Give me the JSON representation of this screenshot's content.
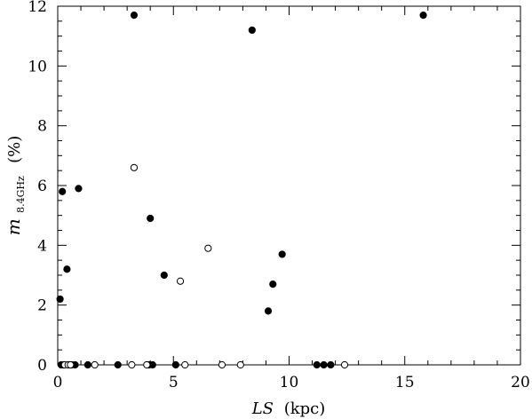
{
  "chart_data": {
    "type": "scatter",
    "xlabel": {
      "main": "LS",
      "unit": "(kpc)"
    },
    "ylabel": {
      "main": "m",
      "subscript": "8.4GHz",
      "unit": "(%)"
    },
    "xlim": [
      0,
      20
    ],
    "ylim": [
      0,
      12
    ],
    "x_ticks": [
      0,
      5,
      10,
      15,
      20
    ],
    "y_ticks": [
      0,
      2,
      4,
      6,
      8,
      10,
      12
    ],
    "x_tick_labels": [
      "0",
      "5",
      "10",
      "15",
      "20"
    ],
    "y_tick_labels": [
      "0",
      "2",
      "4",
      "6",
      "8",
      "10",
      "12"
    ],
    "grid": false,
    "series": [
      {
        "marker": "filled-circle",
        "points": [
          {
            "x": 3.3,
            "y": 11.7
          },
          {
            "x": 8.4,
            "y": 11.2
          },
          {
            "x": 15.8,
            "y": 11.7
          },
          {
            "x": 0.9,
            "y": 5.9
          },
          {
            "x": 0.2,
            "y": 5.8
          },
          {
            "x": 4.0,
            "y": 4.9
          },
          {
            "x": 9.7,
            "y": 3.7
          },
          {
            "x": 0.4,
            "y": 3.2
          },
          {
            "x": 4.6,
            "y": 3.0
          },
          {
            "x": 9.3,
            "y": 2.7
          },
          {
            "x": 0.1,
            "y": 2.2
          },
          {
            "x": 9.1,
            "y": 1.8
          },
          {
            "x": 0.15,
            "y": 0
          },
          {
            "x": 0.25,
            "y": 0
          },
          {
            "x": 0.6,
            "y": 0
          },
          {
            "x": 0.75,
            "y": 0
          },
          {
            "x": 1.3,
            "y": 0
          },
          {
            "x": 2.6,
            "y": 0
          },
          {
            "x": 3.95,
            "y": 0
          },
          {
            "x": 4.1,
            "y": 0
          },
          {
            "x": 5.1,
            "y": 0
          },
          {
            "x": 11.2,
            "y": 0
          },
          {
            "x": 11.5,
            "y": 0
          },
          {
            "x": 11.8,
            "y": 0
          }
        ]
      },
      {
        "marker": "open-circle",
        "points": [
          {
            "x": 3.3,
            "y": 6.6
          },
          {
            "x": 6.5,
            "y": 3.9
          },
          {
            "x": 5.3,
            "y": 2.8
          },
          {
            "x": 0.3,
            "y": 0
          },
          {
            "x": 0.45,
            "y": 0
          },
          {
            "x": 0.55,
            "y": 0
          },
          {
            "x": 1.6,
            "y": 0
          },
          {
            "x": 3.2,
            "y": 0
          },
          {
            "x": 3.85,
            "y": 0
          },
          {
            "x": 5.5,
            "y": 0
          },
          {
            "x": 7.1,
            "y": 0
          },
          {
            "x": 7.9,
            "y": 0
          },
          {
            "x": 12.4,
            "y": 0
          }
        ]
      }
    ]
  }
}
